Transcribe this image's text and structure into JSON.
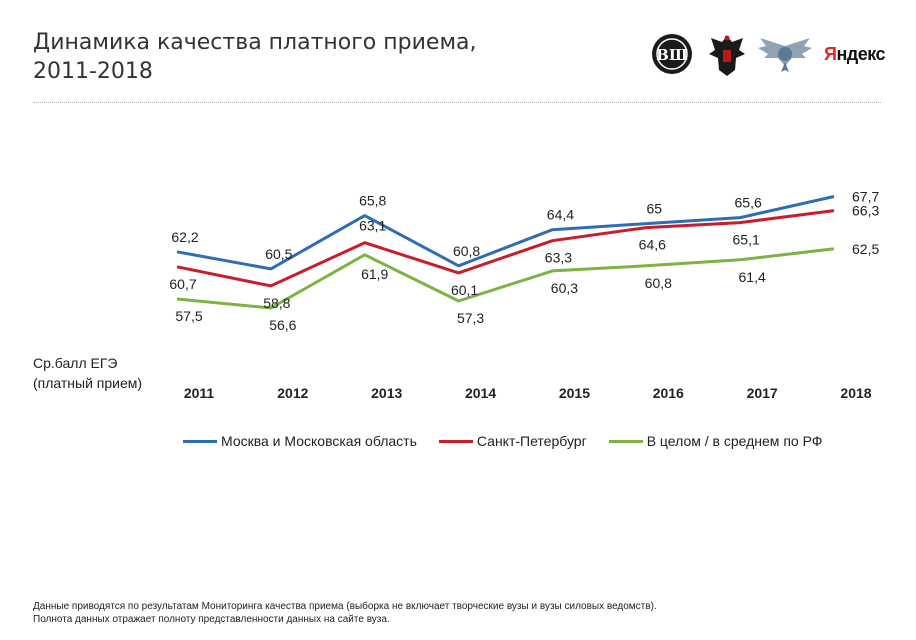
{
  "title_lines": [
    "Динамика качества платного приема,",
    "2011-2018"
  ],
  "logos": {
    "hse_icon": "hse-emblem",
    "ministry_icon": "double-headed-eagle-emblem",
    "rosobrnadzor_icon": "winged-emblem",
    "yandex_text_first": "Я",
    "yandex_text_rest": "ндекс"
  },
  "ylabel_lines": [
    "Ср.балл ЕГЭ",
    "(платный прием)"
  ],
  "colors": {
    "moscow": "#2e6db4",
    "spb": "#c81e2b",
    "russia": "#7cb342"
  },
  "chart_data": {
    "type": "line",
    "categories": [
      "2011",
      "2012",
      "2013",
      "2014",
      "2015",
      "2016",
      "2017",
      "2018"
    ],
    "series": [
      {
        "name": "Москва и Московская область",
        "values": [
          62.2,
          60.5,
          65.8,
          60.8,
          64.4,
          65,
          65.6,
          67.7
        ],
        "labels": [
          "62,2",
          "60,5",
          "65,8",
          "60,8",
          "64,4",
          "65",
          "65,6",
          "67,7"
        ]
      },
      {
        "name": "Санкт-Петербург",
        "values": [
          60.7,
          58.8,
          63.1,
          60.1,
          63.3,
          64.6,
          65.1,
          66.3
        ],
        "labels": [
          "60,7",
          "58,8",
          "63,1",
          "60,1",
          "63,3",
          "64,6",
          "65,1",
          "66,3"
        ]
      },
      {
        "name": "В целом / в среднем по РФ",
        "values": [
          57.5,
          56.6,
          61.9,
          57.3,
          60.3,
          60.8,
          61.4,
          62.5
        ],
        "labels": [
          "57,5",
          "56,6",
          "61,9",
          "57,3",
          "60,3",
          "60,8",
          "61,4",
          "62,5"
        ]
      }
    ],
    "legend_position": "bottom",
    "grid": false
  },
  "footnote_lines": [
    "Данные приводятся по результатам Мониторинга качества приема (выборка не включает творческие вузы и вузы силовых ведомств).",
    "Полнота данных отражает полноту представленности данных на сайте вуза."
  ]
}
